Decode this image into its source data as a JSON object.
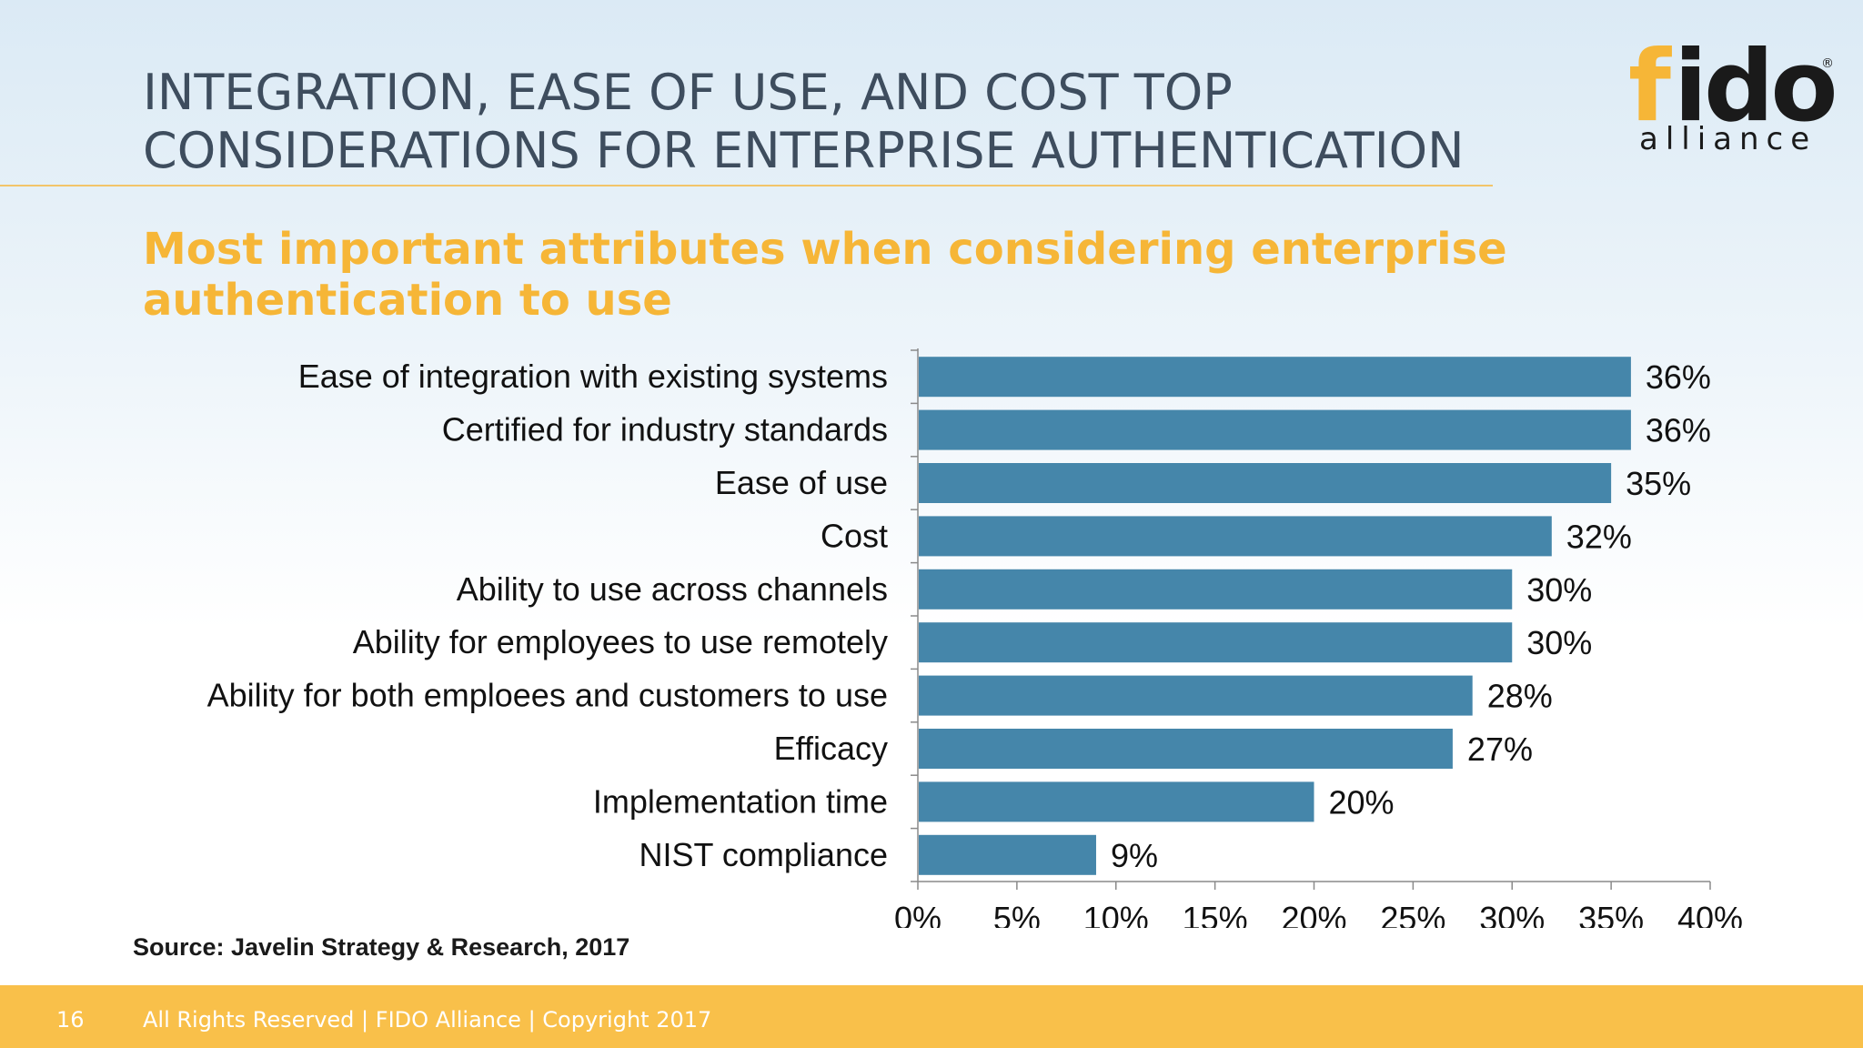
{
  "slide": {
    "title_line1": "INTEGRATION, EASE OF USE, AND COST TOP",
    "title_line2": "CONSIDERATIONS FOR ENTERPRISE AUTHENTICATION",
    "subtitle": "Most important attributes when considering enterprise authentication to use",
    "source": "Source: Javelin Strategy & Research, 2017",
    "page_number": "16",
    "footer_text": "All Rights Reserved | FIDO Alliance | Copyright 2017"
  },
  "logo": {
    "wordmark": "fido",
    "tagline": "alliance",
    "registered_mark": "®",
    "colors": {
      "f_accent": "#f6b637",
      "text": "#1a1a1a"
    }
  },
  "colors": {
    "title": "#3e4d5e",
    "subtitle": "#f6b637",
    "bar": "#4586aa",
    "footer": "#f9c04a"
  },
  "chart_data": {
    "type": "bar",
    "orientation": "horizontal",
    "categories": [
      "Ease of integration with existing systems",
      "Certified for industry standards",
      "Ease of use",
      "Cost",
      "Ability to use across channels",
      "Ability for employees to use remotely",
      "Ability for both emploees and customers to use",
      "Efficacy",
      "Implementation time",
      "NIST compliance"
    ],
    "values": [
      36,
      36,
      35,
      32,
      30,
      30,
      28,
      27,
      20,
      9
    ],
    "value_labels": [
      "36%",
      "36%",
      "35%",
      "32%",
      "30%",
      "30%",
      "28%",
      "27%",
      "20%",
      "9%"
    ],
    "xlim": [
      0,
      40
    ],
    "xticks": [
      "0%",
      "5%",
      "10%",
      "15%",
      "20%",
      "25%",
      "30%",
      "35%",
      "40%"
    ],
    "grid": false,
    "legend": "none"
  }
}
